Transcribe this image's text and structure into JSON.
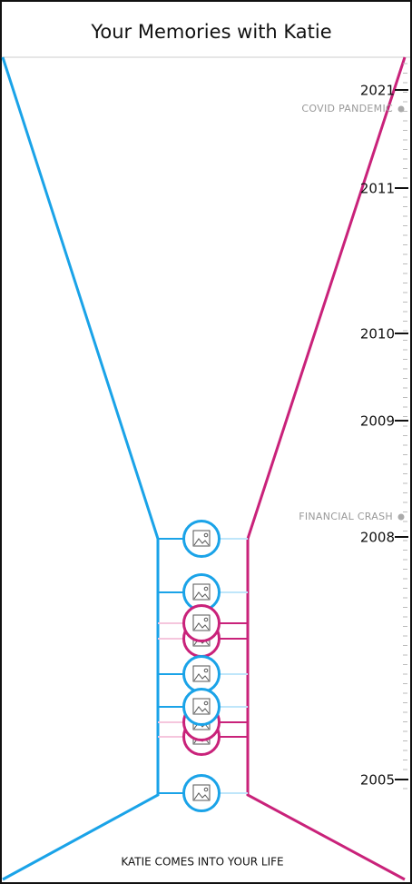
{
  "header": {
    "title": "Your Memories with Katie"
  },
  "timeline": {
    "years": [
      "2021",
      "2011",
      "2010",
      "2009",
      "2008",
      "2005"
    ],
    "events": [
      "COVID PANDEMIC",
      "FINANCIAL CRASH"
    ]
  },
  "footer": {
    "text": "KATIE COMES INTO YOUR LIFE"
  }
}
